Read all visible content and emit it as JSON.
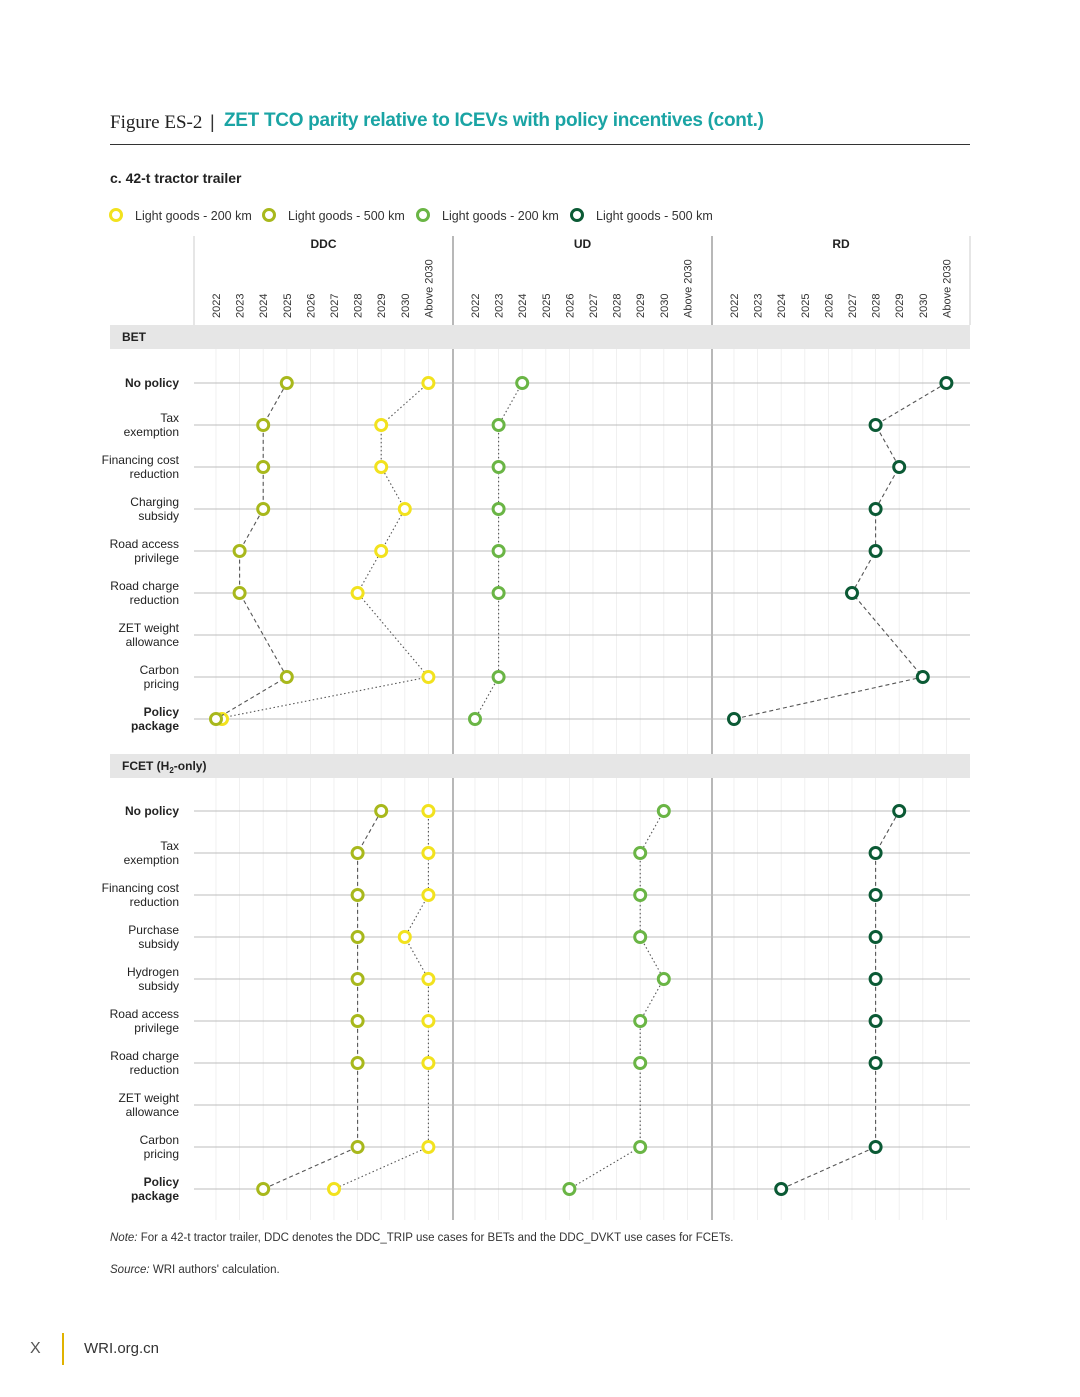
{
  "figure": {
    "number": "Figure ES-2",
    "separator": "|",
    "title": "ZET TCO parity relative to ICEVs with policy incentives (cont.)",
    "subtitle": "c. 42-t tractor trailer"
  },
  "note": {
    "label": "Note:",
    "text": " For a 42-t tractor trailer, DDC denotes the DDC_TRIP use cases for BETs and the DDC_DVKT use cases for FCETs."
  },
  "source": {
    "label": "Source:",
    "text": " WRI authors' calculation."
  },
  "footer": {
    "page": "X",
    "site": "WRI.org.cn"
  },
  "chart_data": {
    "type": "scatter",
    "title": "ZET TCO parity relative to ICEVs with policy incentives (cont.)",
    "subtitle": "c. 42-t tractor trailer",
    "legend_position": "top-left",
    "legend": [
      {
        "key": "lg200",
        "label": "Light goods - 200 km",
        "color": "#f2e21e",
        "line": "dotted"
      },
      {
        "key": "lg500",
        "label": "Light goods - 500 km",
        "color": "#a8b81c",
        "line": "dashed"
      },
      {
        "key": "lg200b",
        "label": "Light goods - 200 km",
        "color": "#6ab545",
        "line": "dotted"
      },
      {
        "key": "lg500b",
        "label": "Light goods - 500 km",
        "color": "#0b5a35",
        "line": "dashed"
      }
    ],
    "panels": [
      {
        "name": "DDC",
        "ticks": [
          "2022",
          "2023",
          "2024",
          "2025",
          "2026",
          "2027",
          "2028",
          "2029",
          "2030",
          "Above 2030"
        ]
      },
      {
        "name": "UD",
        "ticks": [
          "2022",
          "2023",
          "2024",
          "2025",
          "2026",
          "2027",
          "2028",
          "2029",
          "2030",
          "Above 2030"
        ]
      },
      {
        "name": "RD",
        "ticks": [
          "2022",
          "2023",
          "2024",
          "2025",
          "2026",
          "2027",
          "2028",
          "2029",
          "2030",
          "Above 2030"
        ]
      }
    ],
    "sections": [
      {
        "name": "BET",
        "name_main": "BET",
        "rows": [
          {
            "label": [
              "No policy"
            ],
            "bold": true
          },
          {
            "label": [
              "Tax",
              "exemption"
            ],
            "bold": false
          },
          {
            "label": [
              "Financing cost",
              "reduction"
            ],
            "bold": false
          },
          {
            "label": [
              "Charging",
              "subsidy"
            ],
            "bold": false
          },
          {
            "label": [
              "Road access",
              "privilege"
            ],
            "bold": false
          },
          {
            "label": [
              "Road charge",
              "reduction"
            ],
            "bold": false
          },
          {
            "label": [
              "ZET weight",
              "allowance"
            ],
            "bold": false
          },
          {
            "label": [
              "Carbon",
              "pricing"
            ],
            "bold": false
          },
          {
            "label": [
              "Policy",
              "package"
            ],
            "bold": true
          }
        ],
        "series": [
          {
            "key": "lg200",
            "panel": 0,
            "values": [
              "Above 2030",
              "2029",
              "2029",
              "2030",
              "2029",
              "2028",
              null,
              "Above 2030",
              "2022"
            ]
          },
          {
            "key": "lg500",
            "panel": 0,
            "values": [
              "2025",
              "2024",
              "2024",
              "2024",
              "2023",
              "2023",
              null,
              "2025",
              "2022"
            ]
          },
          {
            "key": "lg200b",
            "panel": 1,
            "values": [
              "2024",
              "2023",
              "2023",
              "2023",
              "2023",
              "2023",
              null,
              "2023",
              "2022"
            ]
          },
          {
            "key": "lg500b",
            "panel": 2,
            "values": [
              "Above 2030",
              "2028",
              "2029",
              "2028",
              "2028",
              "2027",
              null,
              "2030",
              "2022"
            ]
          }
        ]
      },
      {
        "name": "FCET (H2-only)",
        "name_main": "FCET (H",
        "name_sub": "2",
        "name_tail": "-only)",
        "rows": [
          {
            "label": [
              "No policy"
            ],
            "bold": true
          },
          {
            "label": [
              "Tax",
              "exemption"
            ],
            "bold": false
          },
          {
            "label": [
              "Financing cost",
              "reduction"
            ],
            "bold": false
          },
          {
            "label": [
              "Purchase",
              "subsidy"
            ],
            "bold": false
          },
          {
            "label": [
              "Hydrogen",
              "subsidy"
            ],
            "bold": false
          },
          {
            "label": [
              "Road access",
              "privilege"
            ],
            "bold": false
          },
          {
            "label": [
              "Road charge",
              "reduction"
            ],
            "bold": false
          },
          {
            "label": [
              "ZET weight",
              "allowance"
            ],
            "bold": false
          },
          {
            "label": [
              "Carbon",
              "pricing"
            ],
            "bold": false
          },
          {
            "label": [
              "Policy",
              "package"
            ],
            "bold": true
          }
        ],
        "series": [
          {
            "key": "lg200",
            "panel": 0,
            "values": [
              "Above 2030",
              "Above 2030",
              "Above 2030",
              "2030",
              "Above 2030",
              "Above 2030",
              "Above 2030",
              null,
              "Above 2030",
              "2027"
            ]
          },
          {
            "key": "lg500",
            "panel": 0,
            "values": [
              "2029",
              "2028",
              "2028",
              "2028",
              "2028",
              "2028",
              "2028",
              null,
              "2028",
              "2024"
            ]
          },
          {
            "key": "lg200b",
            "panel": 1,
            "values": [
              "2030",
              "2029",
              "2029",
              "2029",
              "2030",
              "2029",
              "2029",
              null,
              "2029",
              "2026"
            ]
          },
          {
            "key": "lg500b",
            "panel": 2,
            "values": [
              "2029",
              "2028",
              "2028",
              "2028",
              "2028",
              "2028",
              "2028",
              null,
              "2028",
              "2024"
            ]
          }
        ]
      }
    ]
  }
}
